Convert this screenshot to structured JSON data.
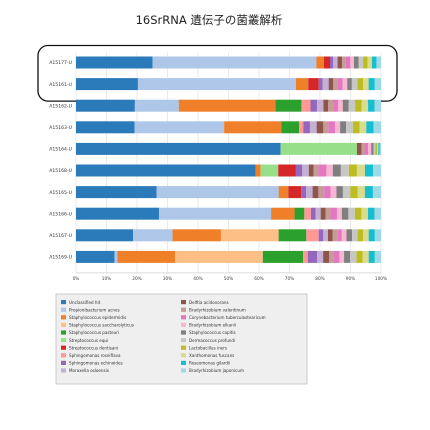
{
  "chart_data": {
    "type": "bar",
    "orientation": "horizontal",
    "stacked": true,
    "normalized_percent": true,
    "title": "16SrRNA 遺伝子の菌叢解析",
    "xlabel": "",
    "ylabel": "",
    "xlim": [
      0,
      100
    ],
    "x_ticks": [
      "0%",
      "10%",
      "20%",
      "30%",
      "40%",
      "50%",
      "60%",
      "70%",
      "80%",
      "90%",
      "100%"
    ],
    "grid": true,
    "legend_position": "bottom",
    "highlight": {
      "rows": [
        "A15177-U",
        "A15161-U"
      ],
      "style": "rounded-outline"
    },
    "categories": [
      "A15177-U",
      "A15161-U",
      "A15162-U",
      "A15163-U",
      "A15164-U",
      "A15168-U",
      "A15165-U",
      "A15166-U",
      "A15167-U",
      "A15169-U"
    ],
    "series": [
      {
        "name": "Unclassified hit",
        "color": "#2b7bba",
        "values": [
          25.2,
          20.0,
          18.2,
          17.5,
          67.1,
          56.0,
          25.0,
          25.5,
          18.5,
          12.5
        ]
      },
      {
        "name": "Propionibacterium acnes",
        "color": "#aec7e8",
        "values": [
          54.0,
          51.0,
          13.6,
          26.7,
          0.0,
          0.0,
          37.8,
          34.3,
          12.8,
          0.9
        ]
      },
      {
        "name": "Staphylococcus epidermidis",
        "color": "#f07f2a",
        "values": [
          2.5,
          4.0,
          29.9,
          17.1,
          0.0,
          1.5,
          3.0,
          7.2,
          15.7,
          18.8
        ]
      },
      {
        "name": "Staphylococcus saccharolyticus",
        "color": "#fdbf86",
        "values": [
          0.0,
          0.0,
          0.0,
          0.0,
          0.0,
          0.0,
          0.0,
          0.0,
          18.7,
          28.5
        ]
      },
      {
        "name": "Staphylococcus pasteuri",
        "color": "#2ca02c",
        "values": [
          0.0,
          0.0,
          8.0,
          5.3,
          0.0,
          0.0,
          0.0,
          3.0,
          9.0,
          13.1
        ]
      },
      {
        "name": "Streptococcus equi",
        "color": "#98df8a",
        "values": [
          0.0,
          0.0,
          0.0,
          0.0,
          25.0,
          5.5,
          0.0,
          0.0,
          0.0,
          0.0
        ]
      },
      {
        "name": "Streptococcus dentisani",
        "color": "#d62728",
        "values": [
          2.0,
          3.4,
          0.0,
          0.0,
          0.0,
          5.5,
          4.0,
          0.0,
          0.0,
          0.0
        ]
      },
      {
        "name": "Sphingomonas roseiflava",
        "color": "#ff9896",
        "values": [
          0.0,
          0.0,
          2.8,
          1.2,
          0.0,
          0.0,
          0.0,
          2.0,
          4.0,
          1.5
        ]
      },
      {
        "name": "Sphingomonas echinoides",
        "color": "#9467bd",
        "values": [
          1.0,
          1.2,
          2.0,
          2.0,
          0.0,
          2.0,
          1.5,
          1.5,
          1.5,
          3.0
        ]
      },
      {
        "name": "Moraxella osloensis",
        "color": "#c5b0d5",
        "values": [
          1.5,
          2.0,
          2.0,
          2.0,
          0.0,
          2.0,
          2.0,
          1.5,
          1.5,
          2.0
        ]
      },
      {
        "name": "Delftia acidovorans",
        "color": "#8c564b",
        "values": [
          1.5,
          1.5,
          1.5,
          2.0,
          1.5,
          1.5,
          1.8,
          1.5,
          1.5,
          2.0
        ]
      },
      {
        "name": "Bradyrhizobium valentinum",
        "color": "#c49c94",
        "values": [
          1.2,
          1.5,
          1.5,
          1.5,
          1.0,
          1.5,
          1.8,
          1.5,
          1.5,
          1.5
        ]
      },
      {
        "name": "Corynebacterium tuberculostearicum",
        "color": "#e377c2",
        "values": [
          1.5,
          1.5,
          1.5,
          2.0,
          1.2,
          2.5,
          2.0,
          2.0,
          1.5,
          1.8
        ]
      },
      {
        "name": "Bradyrhizobium elkanii",
        "color": "#f7b6d2",
        "values": [
          1.2,
          1.5,
          1.5,
          1.5,
          1.0,
          2.0,
          1.8,
          1.5,
          1.5,
          1.5
        ]
      },
      {
        "name": "Staphylococcus capitis",
        "color": "#7f7f7f",
        "values": [
          1.5,
          1.5,
          1.8,
          1.8,
          0.8,
          2.5,
          2.0,
          2.0,
          1.8,
          2.0
        ]
      },
      {
        "name": "Dermacoccus profundi",
        "color": "#c7c7c7",
        "values": [
          1.5,
          1.8,
          2.0,
          2.0,
          0.6,
          2.5,
          2.3,
          2.0,
          1.8,
          2.0
        ]
      },
      {
        "name": "Lactobacillus iners",
        "color": "#bcbd22",
        "values": [
          1.5,
          1.8,
          2.0,
          2.0,
          0.5,
          2.5,
          2.3,
          2.0,
          1.8,
          2.0
        ]
      },
      {
        "name": "Xanthomonas fuscans",
        "color": "#dbdb8d",
        "values": [
          1.4,
          1.8,
          2.0,
          2.0,
          0.4,
          2.5,
          2.2,
          2.0,
          1.8,
          2.0
        ]
      },
      {
        "name": "Roseomonas gilardii",
        "color": "#17becf",
        "values": [
          1.5,
          2.0,
          2.0,
          2.2,
          0.5,
          2.5,
          2.5,
          2.0,
          2.0,
          2.0
        ]
      },
      {
        "name": "Bradyrhizobium japonicum",
        "color": "#9edae5",
        "values": [
          1.5,
          2.0,
          2.0,
          2.2,
          0.4,
          2.5,
          2.5,
          2.0,
          2.0,
          2.0
        ]
      }
    ]
  }
}
